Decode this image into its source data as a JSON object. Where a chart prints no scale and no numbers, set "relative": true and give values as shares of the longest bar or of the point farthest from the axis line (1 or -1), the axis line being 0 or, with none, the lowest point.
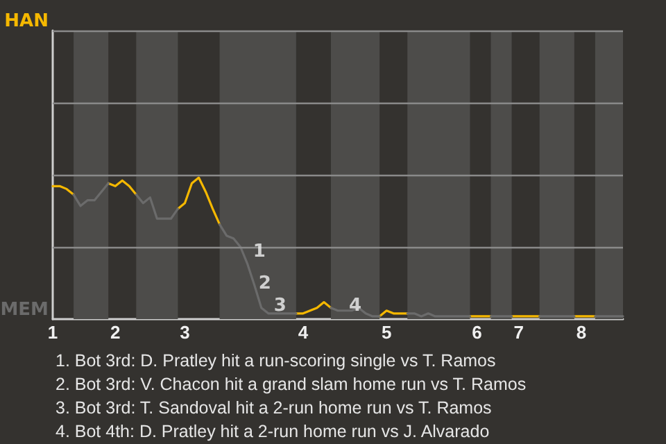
{
  "chart_data": {
    "type": "line",
    "relative": true,
    "categories": [
      "1",
      null,
      null,
      null,
      null,
      null,
      null,
      null,
      null,
      "2",
      null,
      null,
      null,
      null,
      null,
      null,
      null,
      null,
      null,
      "3",
      null,
      null,
      null,
      null,
      null,
      null,
      null,
      null,
      null,
      null,
      null,
      null,
      null,
      null,
      null,
      null,
      "4",
      null,
      null,
      null,
      null,
      null,
      null,
      null,
      null,
      null,
      null,
      null,
      "5",
      null,
      null,
      null,
      null,
      null,
      null,
      null,
      null,
      null,
      null,
      null,
      null,
      "6",
      null,
      null,
      null,
      null,
      null,
      "7",
      null,
      null,
      null,
      null,
      null,
      null,
      null,
      null,
      "8",
      null,
      null,
      null,
      null,
      null,
      null
    ],
    "ref_lines": [
      {
        "axis": "y",
        "value": 0.51,
        "color": "#8a8a8a"
      },
      {
        "axis": "y",
        "value": 1.02,
        "color": "#8a8a8a"
      },
      {
        "axis": "y",
        "value": 1.53,
        "color": "#8a8a8a"
      },
      {
        "axis": "y",
        "value": 2.04,
        "color": "#8a8a8a"
      }
    ],
    "marker": "none",
    "series": [
      {
        "color": "#f5b800",
        "values": [
          0.94,
          0.94,
          0.92,
          0.88,
          null,
          null,
          null,
          null,
          0.96,
          0.94,
          0.98,
          0.94,
          0.88,
          null,
          null,
          null,
          null,
          null,
          0.78,
          0.82,
          0.96,
          1,
          0.9,
          0.78,
          0.67,
          null,
          null,
          null,
          null,
          null,
          null,
          null,
          null,
          null,
          null,
          0.04,
          0.04,
          0.06,
          0.08,
          0.12,
          0.08,
          null,
          null,
          null,
          null,
          null,
          null,
          0.02,
          0.06,
          0.04,
          0.04,
          0.04,
          null,
          null,
          null,
          null,
          null,
          null,
          null,
          null,
          0.02,
          0.02,
          0.02,
          0.02,
          null,
          null,
          0.02,
          0.02,
          0.02,
          0.02,
          0.02,
          null,
          null,
          null,
          null,
          0.02,
          0.02,
          0.02,
          0.02,
          null,
          null,
          null,
          null
        ]
      },
      {
        "color": "#6b6b6b",
        "values": [
          null,
          null,
          null,
          0.88,
          0.8,
          0.84,
          0.84,
          0.9,
          0.96,
          null,
          null,
          null,
          0.88,
          0.82,
          0.86,
          0.71,
          0.71,
          0.71,
          0.78,
          null,
          null,
          null,
          null,
          null,
          0.67,
          0.59,
          0.57,
          0.51,
          0.39,
          0.24,
          0.08,
          0.04,
          0.04,
          0.04,
          0.04,
          0.04,
          null,
          null,
          null,
          null,
          0.08,
          0.06,
          0.06,
          0.06,
          0.08,
          0.04,
          0.02,
          0.02,
          null,
          null,
          null,
          0.04,
          0.04,
          0.02,
          0.04,
          0.02,
          0.02,
          0.02,
          0.02,
          0.02,
          0.02,
          null,
          null,
          0.02,
          0.02,
          0.02,
          0.02,
          null,
          null,
          null,
          0.02,
          0.02,
          0.02,
          0.02,
          0.02,
          0.02,
          null,
          null,
          0.02,
          0.02,
          0.02,
          0.02,
          0.02
        ]
      }
    ],
    "annotations": [
      "HAN",
      "MEM",
      "1",
      "2",
      "3",
      "4",
      "1. Bot 3rd: D. Pratley hit a run-scoring single vs T. Ramos",
      "2. Bot 3rd: V. Chacon hit a grand slam home run vs T. Ramos",
      "3. Bot 3rd: T. Sandoval hit a 2-run home run vs T. Ramos",
      "4. Bot 4th: D. Pratley hit a 2-run home run vs J. Alvarado"
    ]
  }
}
